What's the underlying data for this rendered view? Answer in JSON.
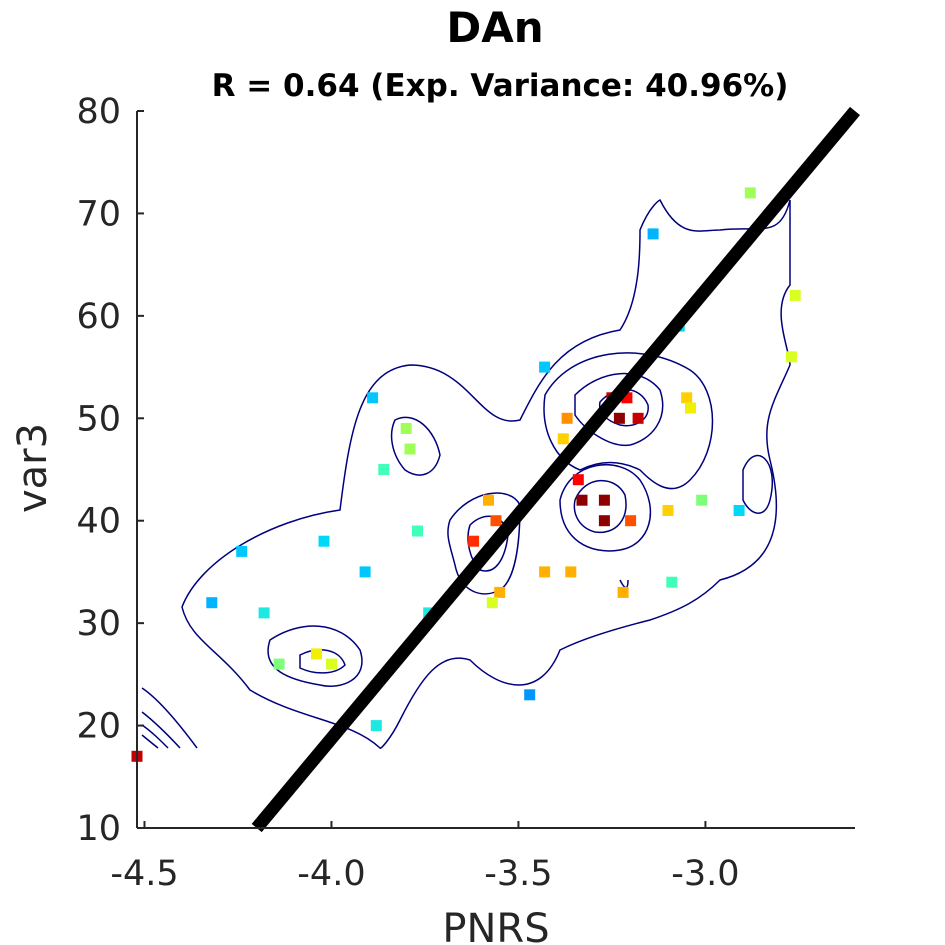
{
  "chart_data": {
    "type": "scatter",
    "title": "DAn",
    "subtitle": "R = 0.64 (Exp. Variance: 40.96%)",
    "xlabel": "PNRS",
    "ylabel": "var3",
    "xlim": [
      -4.52,
      -2.6
    ],
    "ylim": [
      10,
      80
    ],
    "xticks": [
      -4.5,
      -4.0,
      -3.5,
      -3.0
    ],
    "xtick_labels": [
      "-4.5",
      "-4.0",
      "-3.5",
      "-3.0"
    ],
    "yticks": [
      10,
      20,
      30,
      40,
      50,
      60,
      70,
      80
    ],
    "ytick_labels": [
      "10",
      "20",
      "30",
      "40",
      "50",
      "60",
      "70",
      "80"
    ],
    "grid": false,
    "fit_line": {
      "x": [
        -4.2,
        -2.6
      ],
      "y": [
        10,
        80
      ],
      "color": "#000000"
    },
    "contour_color": "#00007f",
    "points": [
      {
        "x": -4.52,
        "y": 17,
        "color": "#c40000"
      },
      {
        "x": -4.32,
        "y": 32,
        "color": "#00b4ff"
      },
      {
        "x": -4.24,
        "y": 37,
        "color": "#00c8ff"
      },
      {
        "x": -4.18,
        "y": 31,
        "color": "#1de9e1"
      },
      {
        "x": -4.14,
        "y": 26,
        "color": "#7dff7a"
      },
      {
        "x": -4.04,
        "y": 27,
        "color": "#f0f000"
      },
      {
        "x": -4.0,
        "y": 26,
        "color": "#d8ff1f"
      },
      {
        "x": -4.02,
        "y": 38,
        "color": "#00d8f8"
      },
      {
        "x": -3.91,
        "y": 35,
        "color": "#00c8ff"
      },
      {
        "x": -3.89,
        "y": 52,
        "color": "#00c8ff"
      },
      {
        "x": -3.86,
        "y": 45,
        "color": "#40ffb8"
      },
      {
        "x": -3.8,
        "y": 49,
        "color": "#a0ff57"
      },
      {
        "x": -3.79,
        "y": 47,
        "color": "#a0ff57"
      },
      {
        "x": -3.77,
        "y": 39,
        "color": "#40ffb8"
      },
      {
        "x": -3.74,
        "y": 31,
        "color": "#1de9e1"
      },
      {
        "x": -3.88,
        "y": 20,
        "color": "#1de9e1"
      },
      {
        "x": -3.62,
        "y": 38,
        "color": "#ff2d00"
      },
      {
        "x": -3.58,
        "y": 42,
        "color": "#ffb000"
      },
      {
        "x": -3.56,
        "y": 40,
        "color": "#ff5000"
      },
      {
        "x": -3.55,
        "y": 33,
        "color": "#ffb000"
      },
      {
        "x": -3.57,
        "y": 32,
        "color": "#d8ff1f"
      },
      {
        "x": -3.47,
        "y": 23,
        "color": "#0096ff"
      },
      {
        "x": -3.43,
        "y": 55,
        "color": "#00c8ff"
      },
      {
        "x": -3.43,
        "y": 35,
        "color": "#ffb000"
      },
      {
        "x": -3.36,
        "y": 35,
        "color": "#ffb000"
      },
      {
        "x": -3.37,
        "y": 50,
        "color": "#ff9000"
      },
      {
        "x": -3.38,
        "y": 48,
        "color": "#ffd000"
      },
      {
        "x": -3.34,
        "y": 44,
        "color": "#ff0000"
      },
      {
        "x": -3.33,
        "y": 42,
        "color": "#8c0000"
      },
      {
        "x": -3.27,
        "y": 42,
        "color": "#8c0000"
      },
      {
        "x": -3.27,
        "y": 40,
        "color": "#8c0000"
      },
      {
        "x": -3.25,
        "y": 52,
        "color": "#c40000"
      },
      {
        "x": -3.23,
        "y": 50,
        "color": "#8c0000"
      },
      {
        "x": -3.21,
        "y": 52,
        "color": "#ff0000"
      },
      {
        "x": -3.18,
        "y": 50,
        "color": "#c40000"
      },
      {
        "x": -3.2,
        "y": 40,
        "color": "#ff5000"
      },
      {
        "x": -3.22,
        "y": 33,
        "color": "#ffb000"
      },
      {
        "x": -3.14,
        "y": 68,
        "color": "#00b4ff"
      },
      {
        "x": -3.1,
        "y": 41,
        "color": "#ffd000"
      },
      {
        "x": -3.09,
        "y": 34,
        "color": "#40ffb8"
      },
      {
        "x": -3.07,
        "y": 59,
        "color": "#00d8f8"
      },
      {
        "x": -3.05,
        "y": 52,
        "color": "#ffd000"
      },
      {
        "x": -3.04,
        "y": 51,
        "color": "#f0f000"
      },
      {
        "x": -3.01,
        "y": 42,
        "color": "#7dff7a"
      },
      {
        "x": -2.91,
        "y": 41,
        "color": "#00d8f8"
      },
      {
        "x": -2.88,
        "y": 72,
        "color": "#a0ff57"
      },
      {
        "x": -2.76,
        "y": 62,
        "color": "#d8ff1f"
      },
      {
        "x": -2.77,
        "y": 56,
        "color": "#d8ff1f"
      }
    ]
  }
}
